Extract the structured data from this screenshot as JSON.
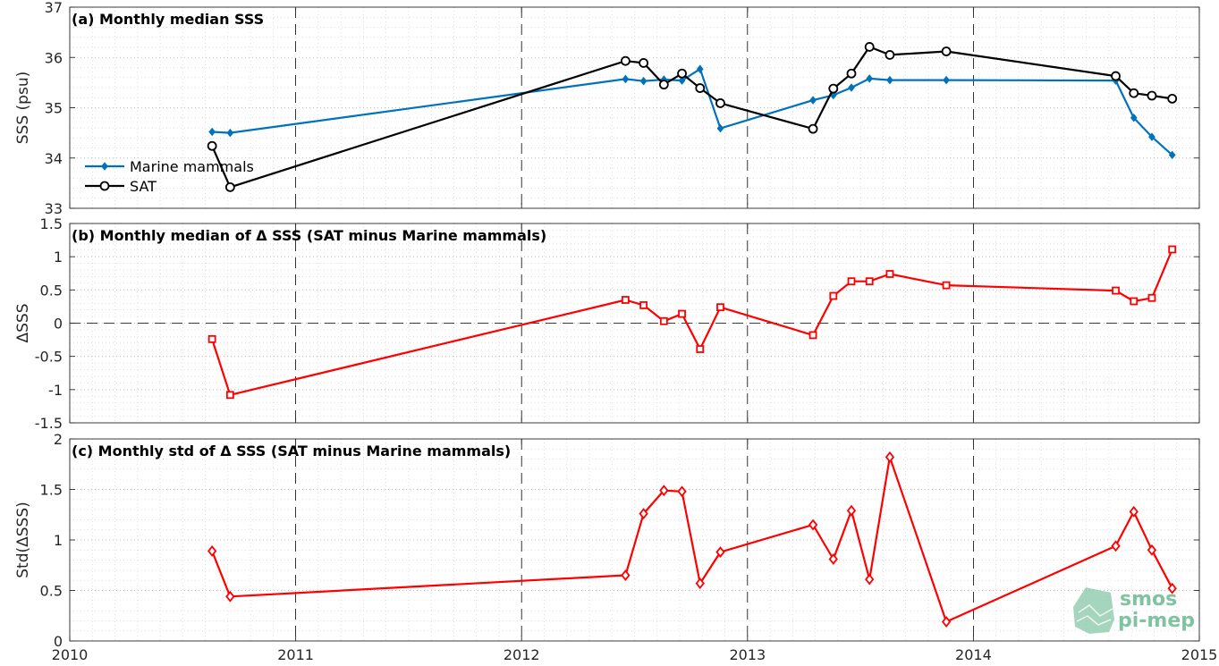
{
  "colors": {
    "marine": "#0072BD",
    "sat": "#000000",
    "delta": "#FF0000",
    "watermark": "#7fc3a0"
  },
  "watermark": {
    "line1": "smos",
    "line2": "pi-mep"
  },
  "chart_data": [
    {
      "type": "line",
      "title": "(a) Monthly median SSS",
      "xlabel": "",
      "ylabel": "SSS (psu)",
      "xlim": [
        2010,
        2015
      ],
      "ylim": [
        33,
        37
      ],
      "xticks": [
        "2010",
        "2011",
        "2012",
        "2013",
        "2014",
        "2015"
      ],
      "yticks": [
        "33",
        "34",
        "35",
        "36",
        "37"
      ],
      "grid": true,
      "legend_position": "bottom-left",
      "series": [
        {
          "name": "Marine mammals",
          "color": "#0072BD",
          "marker": "diamond-filled",
          "x": [
            2010.63,
            2010.71,
            2012.46,
            2012.54,
            2012.63,
            2012.71,
            2012.79,
            2012.88,
            2013.29,
            2013.38,
            2013.46,
            2013.54,
            2013.63,
            2013.88,
            2014.63,
            2014.71,
            2014.79,
            2014.88
          ],
          "y": [
            34.52,
            34.5,
            35.57,
            35.53,
            35.56,
            35.54,
            35.77,
            34.59,
            35.15,
            35.25,
            35.4,
            35.58,
            35.55,
            35.55,
            35.54,
            34.8,
            34.42,
            34.06
          ]
        },
        {
          "name": "SAT",
          "color": "#000000",
          "marker": "circle-open",
          "x": [
            2010.63,
            2010.71,
            2012.46,
            2012.54,
            2012.63,
            2012.71,
            2012.79,
            2012.88,
            2013.29,
            2013.38,
            2013.46,
            2013.54,
            2013.63,
            2013.88,
            2014.63,
            2014.71,
            2014.79,
            2014.88
          ],
          "y": [
            34.24,
            33.42,
            35.93,
            35.89,
            35.46,
            35.68,
            35.39,
            35.09,
            34.58,
            35.38,
            35.68,
            36.21,
            36.05,
            36.12,
            35.63,
            35.29,
            35.24,
            35.18
          ]
        }
      ]
    },
    {
      "type": "line",
      "title": "(b) Monthly median of Δ SSS (SAT minus Marine mammals)",
      "xlabel": "",
      "ylabel": "ΔSSS",
      "xlim": [
        2010,
        2015
      ],
      "ylim": [
        -1.5,
        1.5
      ],
      "xticks": [
        "2010",
        "2011",
        "2012",
        "2013",
        "2014",
        "2015"
      ],
      "yticks": [
        "-1.5",
        "-1",
        "-0.5",
        "0",
        "0.5",
        "1",
        "1.5"
      ],
      "grid": true,
      "reference_line": 0,
      "series": [
        {
          "color": "#FF0000",
          "marker": "square-open",
          "x": [
            2010.63,
            2010.71,
            2012.46,
            2012.54,
            2012.63,
            2012.71,
            2012.79,
            2012.88,
            2013.29,
            2013.38,
            2013.46,
            2013.54,
            2013.63,
            2013.88,
            2014.63,
            2014.71,
            2014.79,
            2014.88
          ],
          "y": [
            -0.24,
            -1.08,
            0.35,
            0.27,
            0.03,
            0.14,
            -0.39,
            0.24,
            -0.18,
            0.41,
            0.63,
            0.63,
            0.74,
            0.57,
            0.49,
            0.33,
            0.38,
            1.11
          ]
        }
      ]
    },
    {
      "type": "line",
      "title": "(c) Monthly std of Δ SSS (SAT minus Marine mammals)",
      "xlabel": "",
      "ylabel": "Std(ΔSSS)",
      "xlim": [
        2010,
        2015
      ],
      "ylim": [
        0,
        2
      ],
      "xticks": [
        "2010",
        "2011",
        "2012",
        "2013",
        "2014",
        "2015"
      ],
      "yticks": [
        "0",
        "0.5",
        "1",
        "1.5",
        "2"
      ],
      "grid": true,
      "series": [
        {
          "color": "#FF0000",
          "marker": "diamond-open",
          "x": [
            2010.63,
            2010.71,
            2012.46,
            2012.54,
            2012.63,
            2012.71,
            2012.79,
            2012.88,
            2013.29,
            2013.38,
            2013.46,
            2013.54,
            2013.63,
            2013.88,
            2014.63,
            2014.71,
            2014.79,
            2014.88
          ],
          "y": [
            0.89,
            0.44,
            0.65,
            1.26,
            1.49,
            1.48,
            0.57,
            0.88,
            1.15,
            0.81,
            1.29,
            0.61,
            1.82,
            0.19,
            0.94,
            1.28,
            0.9,
            0.52
          ]
        }
      ]
    }
  ]
}
